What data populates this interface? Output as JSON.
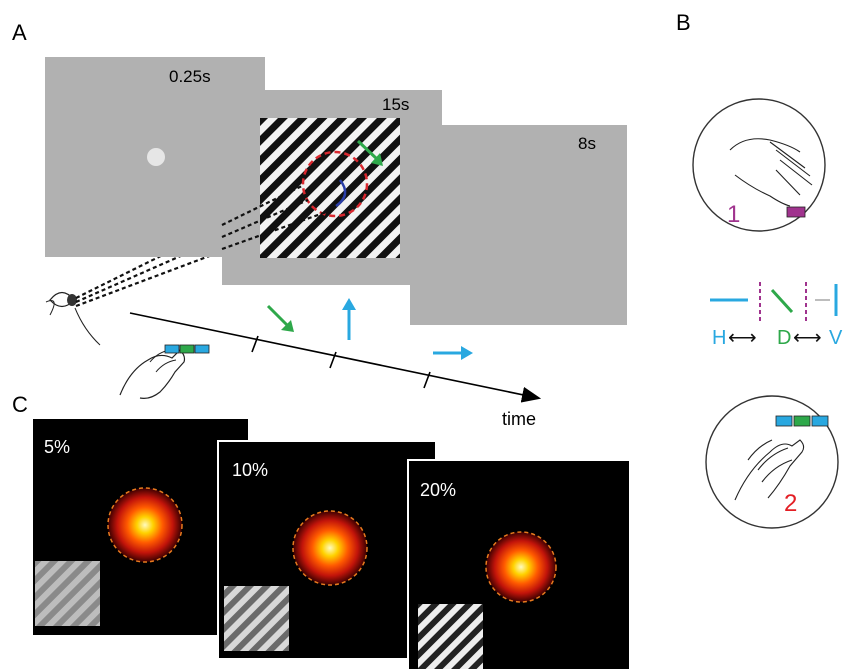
{
  "panels": {
    "a": "A",
    "b": "B",
    "c": "C"
  },
  "timeline": {
    "screen1_duration": "0.25s",
    "screen2_duration": "15s",
    "screen3_duration": "8s",
    "axis_label": "time"
  },
  "response_scheme": {
    "step1": "1",
    "step2": "2",
    "h_label": "H",
    "d_label": "D",
    "v_label": "V",
    "arrow_glyph": "⟷"
  },
  "coherence_panels": [
    {
      "label": "5%",
      "grating_contrast": 0.25
    },
    {
      "label": "10%",
      "grating_contrast": 0.5
    },
    {
      "label": "20%",
      "grating_contrast": 1.0
    }
  ],
  "colors": {
    "screen_gray": "#b1b1b1",
    "horizontal_cyan": "#29a8e0",
    "diagonal_green": "#2ea84a",
    "vertical_cyan": "#29a8e0",
    "step1_magenta": "#a0338e",
    "step2_red": "#e31e24",
    "boundary_red": "#d9272e",
    "heatmap_outline_orange": "#e87a1e",
    "fixation_dot": "#e6e6e6"
  }
}
